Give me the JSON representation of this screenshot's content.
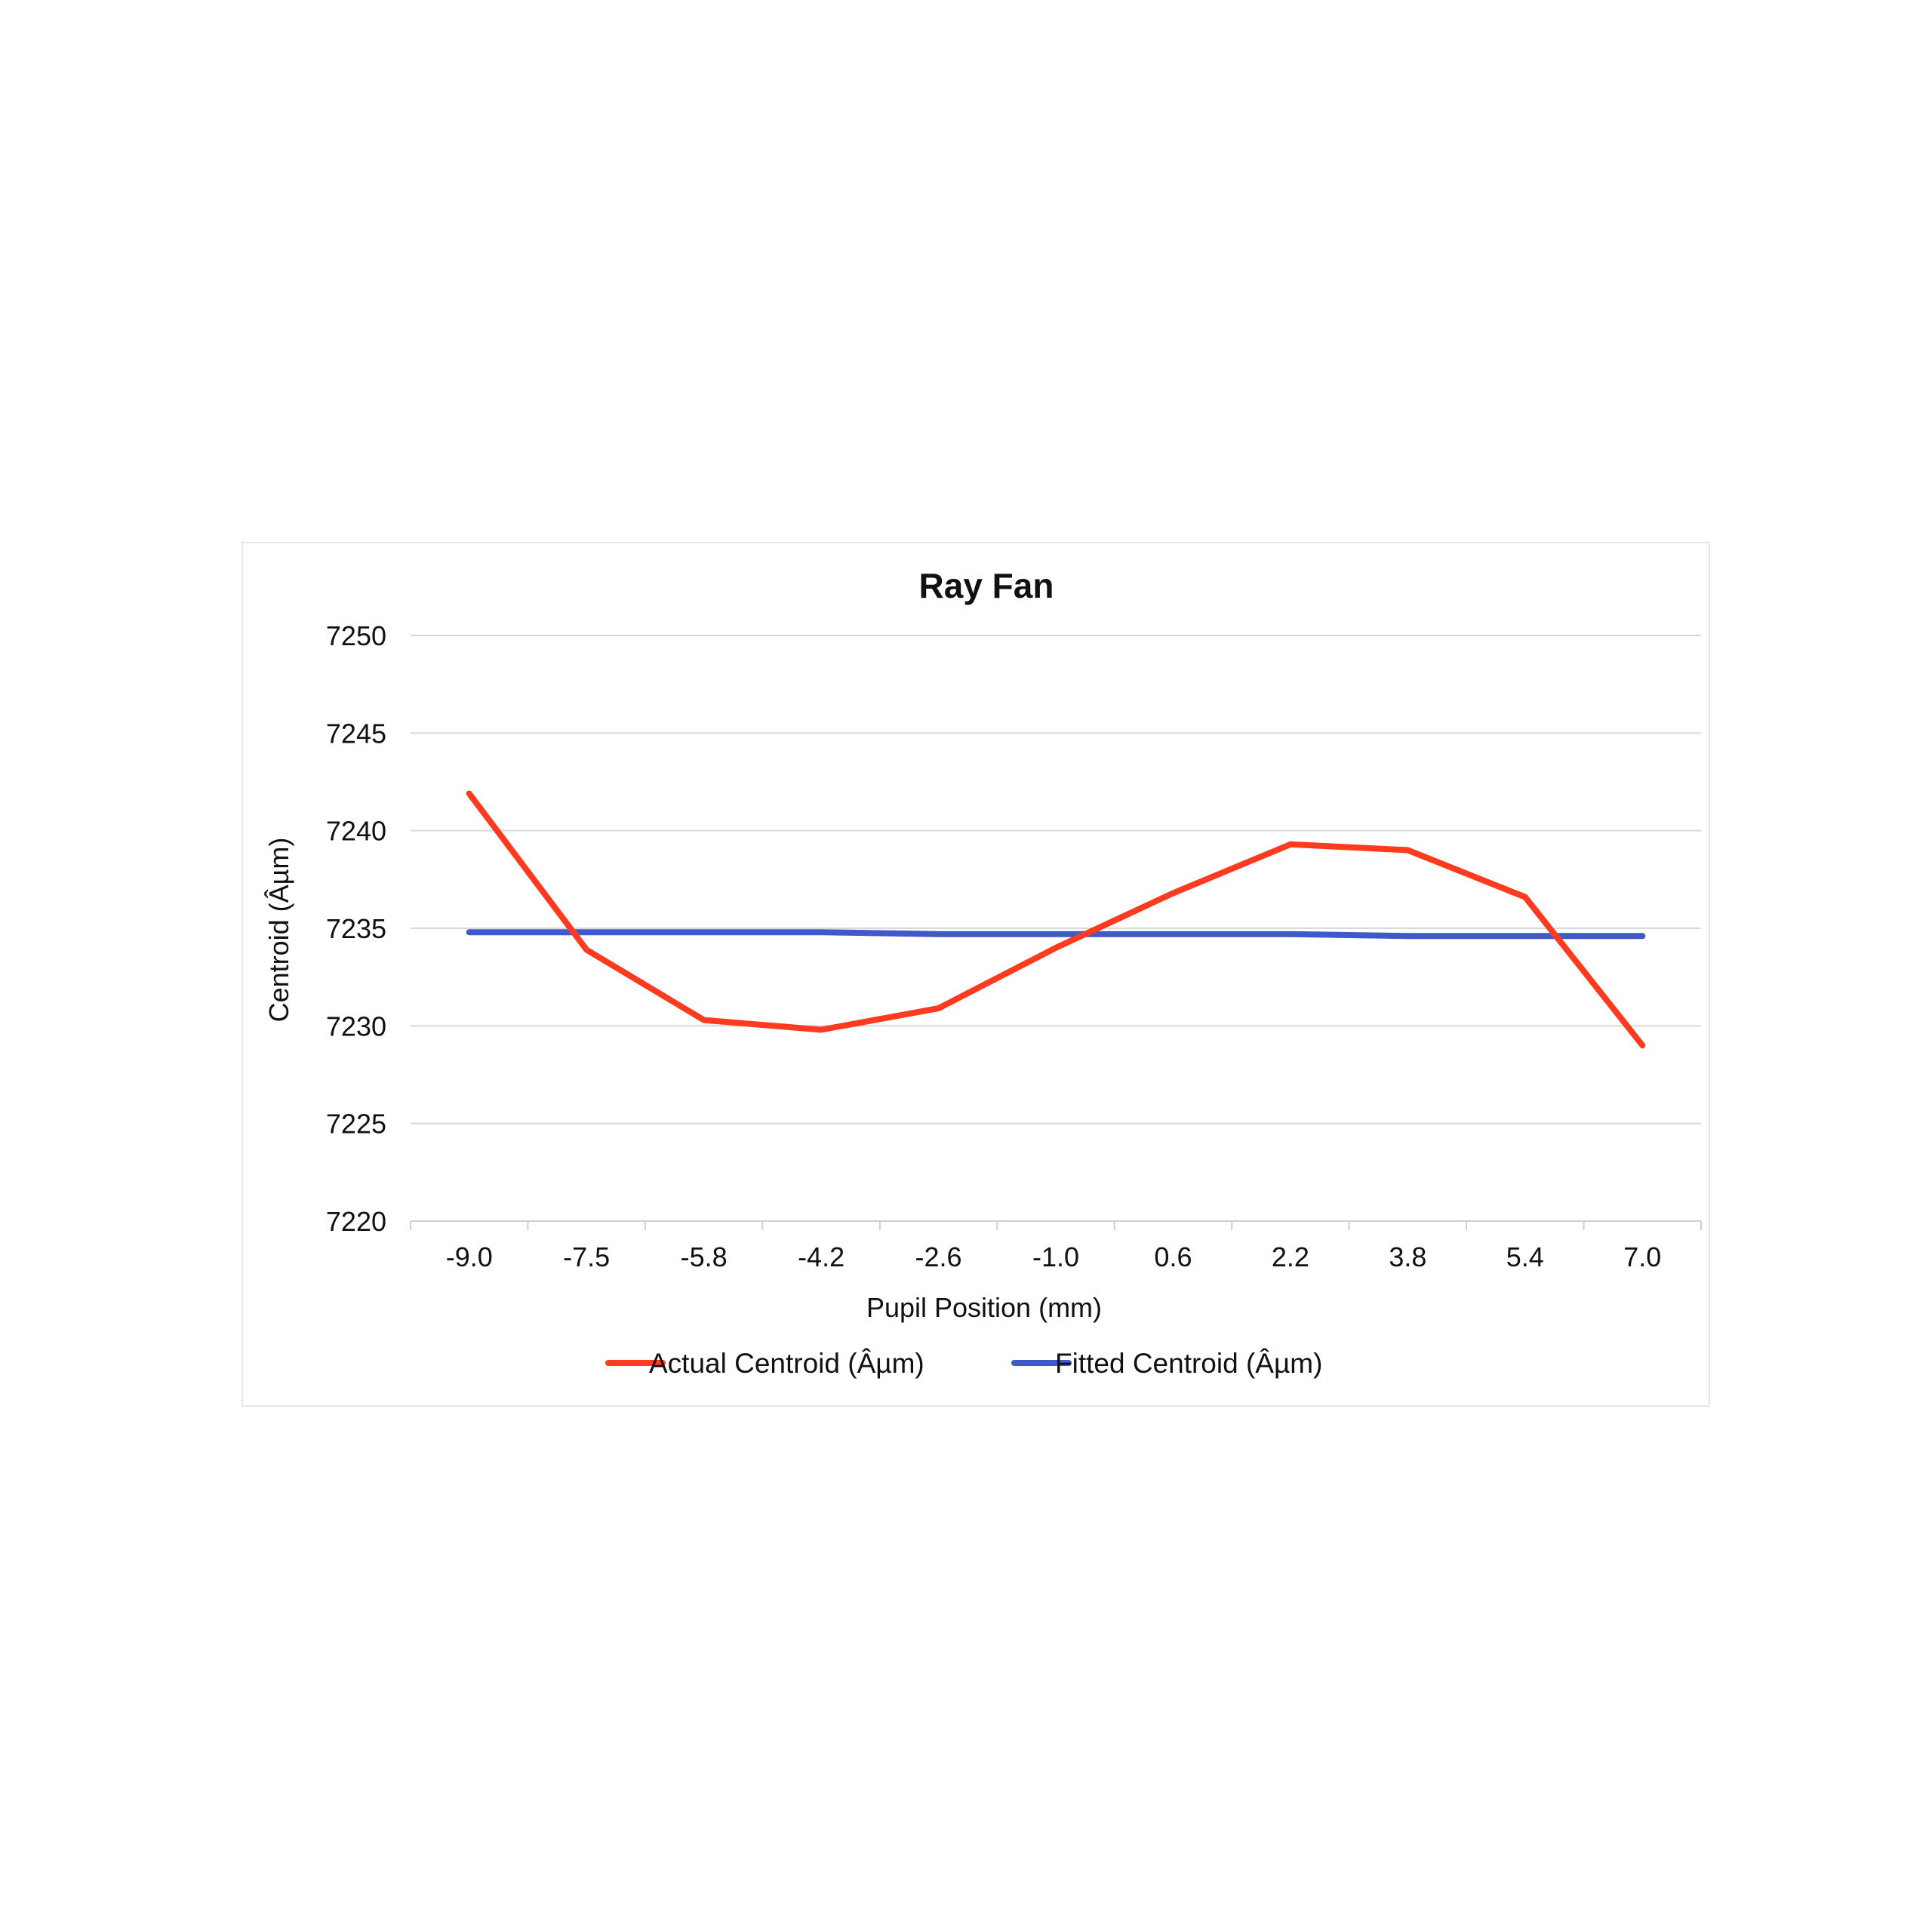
{
  "chart_data": {
    "type": "line",
    "title": "Ray Fan",
    "xlabel": "Pupil Position (mm)",
    "ylabel": "Centroid (Âµm)",
    "categories": [
      "-9.0",
      "-7.5",
      "-5.8",
      "-4.2",
      "-2.6",
      "-1.0",
      "0.6",
      "2.2",
      "3.8",
      "5.4",
      "7.0"
    ],
    "y_ticks": [
      "7220",
      "7225",
      "7230",
      "7235",
      "7240",
      "7245",
      "7250"
    ],
    "ylim": [
      7220,
      7250
    ],
    "grid": "horizontal",
    "legend_position": "bottom",
    "series": [
      {
        "name": "Actual Centroid (Âµm)",
        "color": "#ff3b1f",
        "values": [
          7241.9,
          7233.9,
          7230.3,
          7229.8,
          7230.9,
          7234.0,
          7236.8,
          7239.3,
          7239.0,
          7236.6,
          7229.0
        ]
      },
      {
        "name": "Fitted Centroid (Âµm)",
        "color": "#4059c8",
        "values": [
          7234.8,
          7234.8,
          7234.8,
          7234.8,
          7234.7,
          7234.7,
          7234.7,
          7234.7,
          7234.6,
          7234.6,
          7234.6
        ]
      }
    ]
  }
}
